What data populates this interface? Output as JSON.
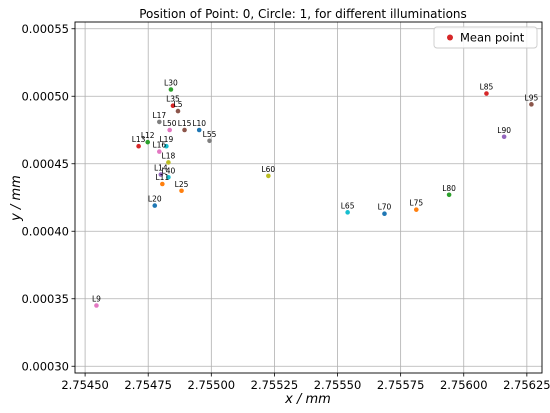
{
  "chart_data": {
    "type": "scatter",
    "title": "Position of Point: 0, Circle: 1,  for different illuminations",
    "xlabel": "x / mm",
    "ylabel": "y / mm",
    "xlim": [
      2.75446,
      2.75631
    ],
    "ylim": [
      0.000295,
      0.000555
    ],
    "xticks": [
      2.7545,
      2.75475,
      2.755,
      2.75525,
      2.7555,
      2.75575,
      2.756,
      2.75625
    ],
    "xtick_labels": [
      "2.75450",
      "2.75475",
      "2.75500",
      "2.75525",
      "2.75550",
      "2.75575",
      "2.75600",
      "2.75625"
    ],
    "yticks": [
      0.0003,
      0.00035,
      0.0004,
      0.00045,
      0.0005,
      0.00055
    ],
    "ytick_labels": [
      "0.00030",
      "0.00035",
      "0.00040",
      "0.00045",
      "0.00050",
      "0.00055"
    ],
    "grid": true,
    "legend": {
      "placement": "top-right",
      "entries": [
        {
          "label": "Mean point",
          "color": "#d62728"
        }
      ]
    },
    "points": [
      {
        "label": "L30",
        "x": 2.75484,
        "y": 0.000505,
        "color": "#2ca02c"
      },
      {
        "label": "L35",
        "x": 2.754848,
        "y": 0.000493,
        "color": "#d62728"
      },
      {
        "label": "L5",
        "x": 2.754868,
        "y": 0.000489,
        "color": "#8c564b"
      },
      {
        "label": "L17",
        "x": 2.754794,
        "y": 0.000481,
        "color": "#7f7f7f"
      },
      {
        "label": "L50",
        "x": 2.754835,
        "y": 0.000475,
        "color": "#e377c2"
      },
      {
        "label": "L15",
        "x": 2.754894,
        "y": 0.000475,
        "color": "#8c564b"
      },
      {
        "label": "L10",
        "x": 2.754952,
        "y": 0.000475,
        "color": "#1f77b4"
      },
      {
        "label": "L55",
        "x": 2.754993,
        "y": 0.000467,
        "color": "#7f7f7f"
      },
      {
        "label": "L13",
        "x": 2.754712,
        "y": 0.000463,
        "color": "#d62728"
      },
      {
        "label": "L12",
        "x": 2.754748,
        "y": 0.000466,
        "color": "#2ca02c"
      },
      {
        "label": "L19",
        "x": 2.754822,
        "y": 0.000463,
        "color": "#17becf"
      },
      {
        "label": "L16",
        "x": 2.754794,
        "y": 0.000459,
        "color": "#e377c2"
      },
      {
        "label": "L18",
        "x": 2.75483,
        "y": 0.000451,
        "color": "#bcbd22"
      },
      {
        "label": "L14",
        "x": 2.7548,
        "y": 0.000442,
        "color": "#9467bd"
      },
      {
        "label": "L40",
        "x": 2.75483,
        "y": 0.00044,
        "color": "#17becf"
      },
      {
        "label": "L11",
        "x": 2.754806,
        "y": 0.000435,
        "color": "#ff7f0e"
      },
      {
        "label": "L25",
        "x": 2.754882,
        "y": 0.00043,
        "color": "#ff7f0e"
      },
      {
        "label": "L20",
        "x": 2.754776,
        "y": 0.000419,
        "color": "#1f77b4"
      },
      {
        "label": "L60",
        "x": 2.755226,
        "y": 0.000441,
        "color": "#bcbd22"
      },
      {
        "label": "L65",
        "x": 2.75554,
        "y": 0.000414,
        "color": "#17becf"
      },
      {
        "label": "L70",
        "x": 2.755686,
        "y": 0.000413,
        "color": "#1f77b4"
      },
      {
        "label": "L75",
        "x": 2.755812,
        "y": 0.000416,
        "color": "#ff7f0e"
      },
      {
        "label": "L80",
        "x": 2.755942,
        "y": 0.000427,
        "color": "#2ca02c"
      },
      {
        "label": "L85",
        "x": 2.75609,
        "y": 0.000502,
        "color": "#d62728"
      },
      {
        "label": "L95",
        "x": 2.756268,
        "y": 0.000494,
        "color": "#8c564b"
      },
      {
        "label": "L90",
        "x": 2.75616,
        "y": 0.00047,
        "color": "#9467bd"
      },
      {
        "label": "L9",
        "x": 2.754545,
        "y": 0.000345,
        "color": "#e377c2"
      }
    ]
  }
}
